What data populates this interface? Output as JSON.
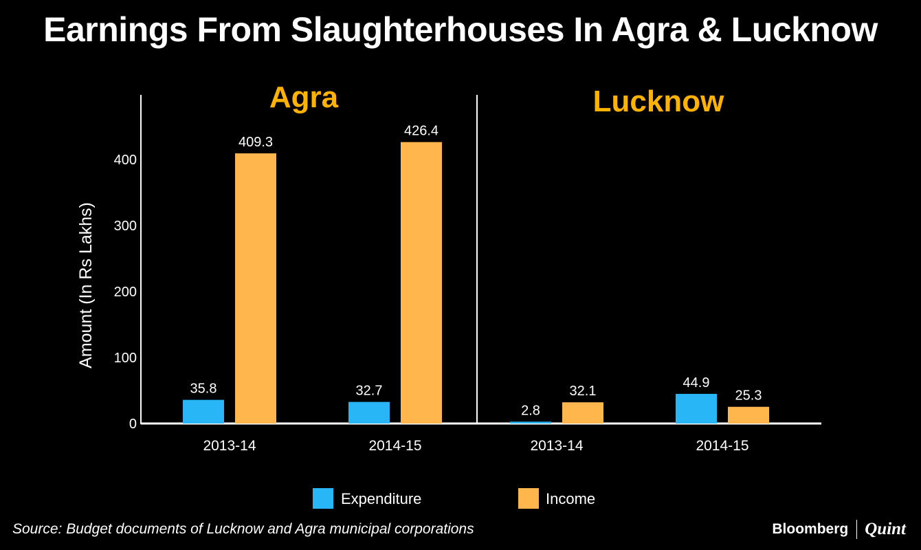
{
  "chart_data": {
    "type": "bar",
    "title": "Earnings From Slaughterhouses In Agra & Lucknow",
    "ylabel": "Amount (In Rs Lakhs)",
    "ylim": [
      0,
      500
    ],
    "yticks": [
      "0",
      "100",
      "200",
      "300",
      "400"
    ],
    "panels": [
      {
        "name": "Agra",
        "categories": [
          "2013-14",
          "2014-15"
        ],
        "series": [
          {
            "name": "Expenditure",
            "values": [
              35.8,
              32.7
            ],
            "labels": [
              "35.8",
              "32.7"
            ]
          },
          {
            "name": "Income",
            "values": [
              409.3,
              426.4
            ],
            "labels": [
              "409.3",
              "426.4"
            ]
          }
        ]
      },
      {
        "name": "Lucknow",
        "categories": [
          "2013-14",
          "2014-15"
        ],
        "series": [
          {
            "name": "Expenditure",
            "values": [
              2.8,
              44.9
            ],
            "labels": [
              "2.8",
              "44.9"
            ]
          },
          {
            "name": "Income",
            "values": [
              32.1,
              25.3
            ],
            "labels": [
              "32.1",
              "25.3"
            ]
          }
        ]
      }
    ],
    "legend": [
      "Expenditure",
      "Income"
    ],
    "legend_position": "bottom",
    "grid": false,
    "colors": {
      "Expenditure": "#29b6f6",
      "Income": "#ffb74d",
      "panel_title": "#ffb300",
      "axis": "#ffffff"
    }
  },
  "source": "Source: Budget documents of  Lucknow and Agra municipal corporations",
  "brand": {
    "primary": "Bloomberg",
    "secondary": "Quint"
  }
}
